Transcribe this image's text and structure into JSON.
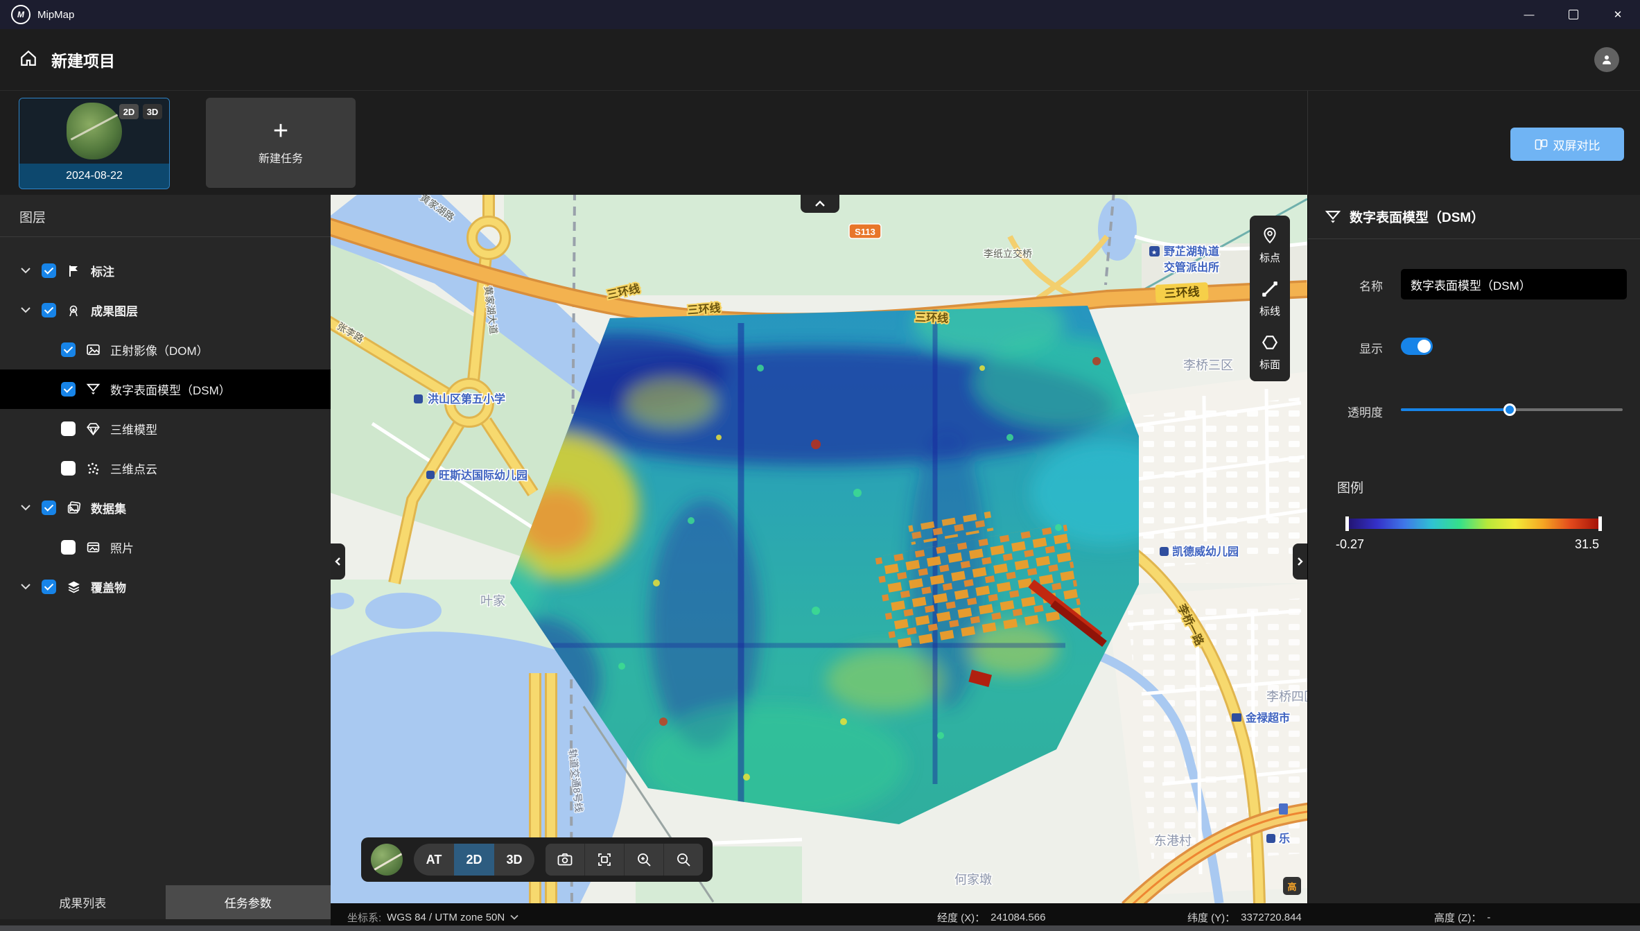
{
  "window": {
    "title": "MipMap"
  },
  "header": {
    "title": "新建项目"
  },
  "project_bar": {
    "card_date": "2024-08-22",
    "badge_2d": "2D",
    "badge_3d": "3D",
    "new_task": "新建任务",
    "new_task_plus": "+",
    "compare": "双屏对比"
  },
  "sidebar": {
    "title": "图层",
    "tree": [
      {
        "label": "标注",
        "icon": "flag-icon",
        "checked": true,
        "expandable": true,
        "selected": false
      },
      {
        "label": "成果图层",
        "icon": "medal-icon",
        "checked": true,
        "expandable": true,
        "selected": false
      },
      {
        "label": "正射影像（DOM）",
        "icon": "image-icon",
        "checked": true,
        "expandable": false,
        "selected": false
      },
      {
        "label": "数字表面模型（DSM）",
        "icon": "dsm-funnel-icon",
        "checked": true,
        "expandable": false,
        "selected": true
      },
      {
        "label": "三维模型",
        "icon": "model-icon",
        "checked": false,
        "expandable": false,
        "selected": false
      },
      {
        "label": "三维点云",
        "icon": "pointcloud-icon",
        "checked": false,
        "expandable": false,
        "selected": false
      },
      {
        "label": "数据集",
        "icon": "dataset-icon",
        "checked": true,
        "expandable": true,
        "selected": false
      },
      {
        "label": "照片",
        "icon": "photo-icon",
        "checked": false,
        "expandable": false,
        "selected": false
      },
      {
        "label": "覆盖物",
        "icon": "layers-icon",
        "checked": true,
        "expandable": true,
        "selected": false
      }
    ],
    "tabs": [
      {
        "label": "成果列表",
        "active": false
      },
      {
        "label": "任务参数",
        "active": true
      }
    ]
  },
  "map": {
    "annotation_tools": [
      {
        "label": "标点",
        "icon": "pin-icon"
      },
      {
        "label": "标线",
        "icon": "line-icon"
      },
      {
        "label": "标面",
        "icon": "polygon-icon"
      }
    ],
    "view_modes": [
      "AT",
      "2D",
      "3D"
    ],
    "active_mode": "2D",
    "labels": {
      "ring_road": "三环线",
      "s113": "S113",
      "police_line1": "野芷湖轨道",
      "police_line2": "交管派出所",
      "bridge": "李纸立交桥",
      "liqiao3": "李桥三区",
      "liqiao4": "李桥四区",
      "school": "洪山区第五小学",
      "kindergarten1": "旺斯达国际幼儿园",
      "kindergarten2": "凯德威幼儿园",
      "supermarket": "金禄超市",
      "yejia": "叶家",
      "donggang": "东港村",
      "hejiadun": "何家墩",
      "le": "乐",
      "liqiao_rd": "李桥一路",
      "huangjiahu_rd": "黄家湖路",
      "huangjiahu_ave": "黄家湖大道",
      "zhangli_rd": "张李路",
      "metro8": "轨道交通8号线"
    }
  },
  "status_bar": {
    "crs_label": "坐标系:",
    "crs_value": "WGS 84 / UTM zone 50N",
    "lon_label": "经度 (X)：",
    "lon_value": "241084.566",
    "lat_label": "纬度 (Y)：",
    "lat_value": "3372720.844",
    "alt_label": "高度 (Z)：",
    "alt_value": "-"
  },
  "inspector": {
    "title": "数字表面模型（DSM）",
    "name_label": "名称",
    "name_value": "数字表面模型（DSM）",
    "display_label": "显示",
    "display_on": true,
    "opacity_label": "透明度",
    "opacity_percent": 49,
    "legend_label": "图例",
    "legend_min": "-0.27",
    "legend_max": "31.5",
    "legend_colors": [
      "#231574",
      "#3430c8",
      "#3f77e8",
      "#2fc2d2",
      "#35e08a",
      "#b8e83a",
      "#f2ea38",
      "#f5a623",
      "#e2491c",
      "#a61408"
    ]
  },
  "colors": {
    "accent": "#1784e8",
    "compare_button": "#70b4f4",
    "active_mode_bg": "#2d5c80"
  }
}
